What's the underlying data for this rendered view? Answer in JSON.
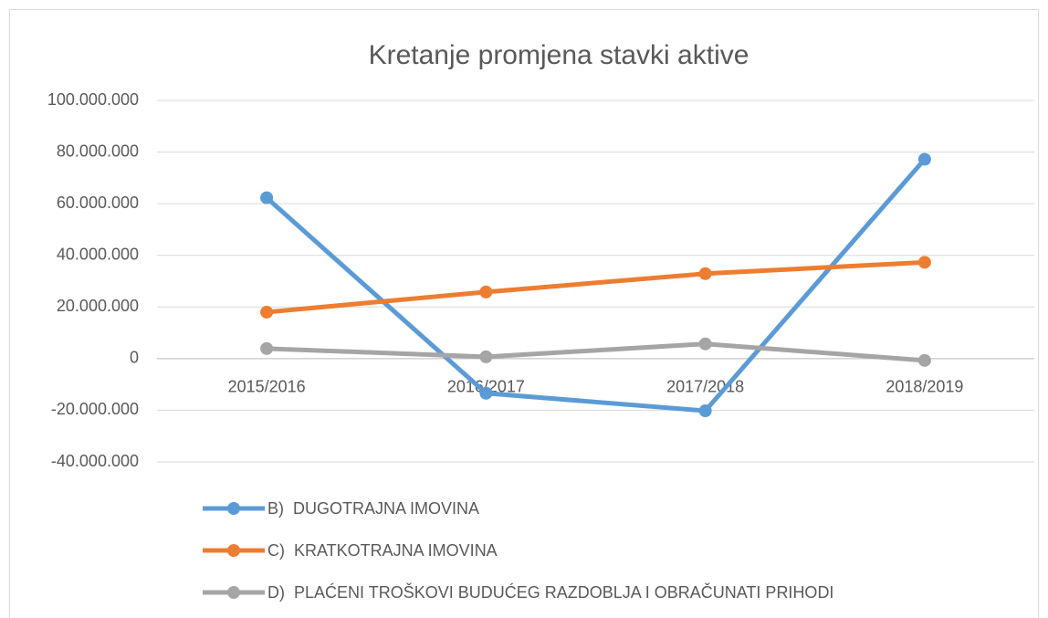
{
  "chart_data": {
    "type": "line",
    "title": "Kretanje promjena stavki aktive",
    "categories": [
      "2015/2016",
      "2016/2017",
      "2017/2018",
      "2018/2019"
    ],
    "series": [
      {
        "name": "B)  DUGOTRAJNA IMOVINA",
        "color": "#5b9bd5",
        "values": [
          62300000,
          -13400000,
          -20200000,
          77200000
        ]
      },
      {
        "name": "C)  KRATKOTRAJNA IMOVINA",
        "color": "#ed7d31",
        "values": [
          18000000,
          25800000,
          32900000,
          37300000
        ]
      },
      {
        "name": "D)  PLAĆENI TROŠKOVI BUDUĆEG RAZDOBLJA I OBRAČUNATI PRIHODI",
        "color": "#a5a5a5",
        "values": [
          3900000,
          700000,
          5700000,
          -700000
        ]
      }
    ],
    "ylim": [
      -40000000,
      100000000
    ],
    "yticks": [
      {
        "value": -40000000,
        "label": "-40.000.000"
      },
      {
        "value": -20000000,
        "label": "-20.000.000"
      },
      0,
      {
        "value": 20000000,
        "label": "20.000.000"
      },
      {
        "value": 40000000,
        "label": "40.000.000"
      },
      {
        "value": 60000000,
        "label": "60.000.000"
      },
      {
        "value": 80000000,
        "label": "80.000.000"
      },
      {
        "value": 100000000,
        "label": "100.000.000"
      }
    ],
    "grid": true,
    "legend": "bottom"
  }
}
